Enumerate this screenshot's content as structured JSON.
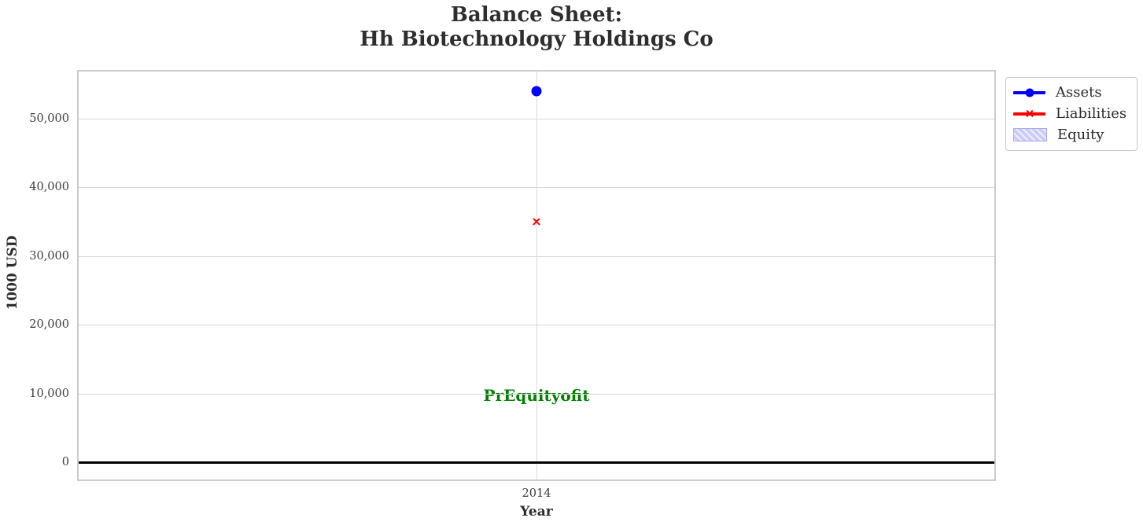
{
  "chart_data": {
    "type": "line",
    "title": "Balance Sheet:\nHh Biotechnology Holdings Co",
    "xlabel": "Year",
    "ylabel": "1000 USD",
    "x": [
      2014
    ],
    "xtick_labels": [
      "2014"
    ],
    "yticks": [
      0,
      10000,
      20000,
      30000,
      40000,
      50000
    ],
    "ytick_labels": [
      "0",
      "10,000",
      "20,000",
      "30,000",
      "40,000",
      "50,000"
    ],
    "xlim": [
      2013.5,
      2014.5
    ],
    "ylim": [
      -2500,
      56800
    ],
    "grid": true,
    "zero_line": {
      "value": 0,
      "color": "#000000"
    },
    "series": [
      {
        "name": "Assets",
        "values": [
          54000
        ],
        "color": "#0000ff",
        "marker": "circle",
        "line_style": "solid"
      },
      {
        "name": "Liabilities",
        "values": [
          35000
        ],
        "color": "#ff0000",
        "marker": "x",
        "line_style": "solid"
      },
      {
        "name": "Equity",
        "values": [],
        "color": "#ccccfa",
        "style": "hatched-area",
        "hatch": "//"
      }
    ],
    "annotations": [
      {
        "text": "PrEquityofit",
        "x": 2014,
        "y": 9700,
        "color": "#008000",
        "bold": true
      }
    ],
    "legend": {
      "position": "upper-right-outside",
      "items": [
        "Assets",
        "Liabilities",
        "Equity"
      ]
    }
  },
  "colors": {
    "background": "#ffffff",
    "grid": "#d9d9d9",
    "spine": "#cccccc",
    "title_text": "#2e2e2e",
    "tick_text": "#3c3c3c",
    "zero_line": "#000000",
    "annotation_green": "#008000",
    "assets_blue": "#0000ff",
    "liabilities_red": "#ff0000",
    "equity_lavender": "#ccccfa"
  }
}
